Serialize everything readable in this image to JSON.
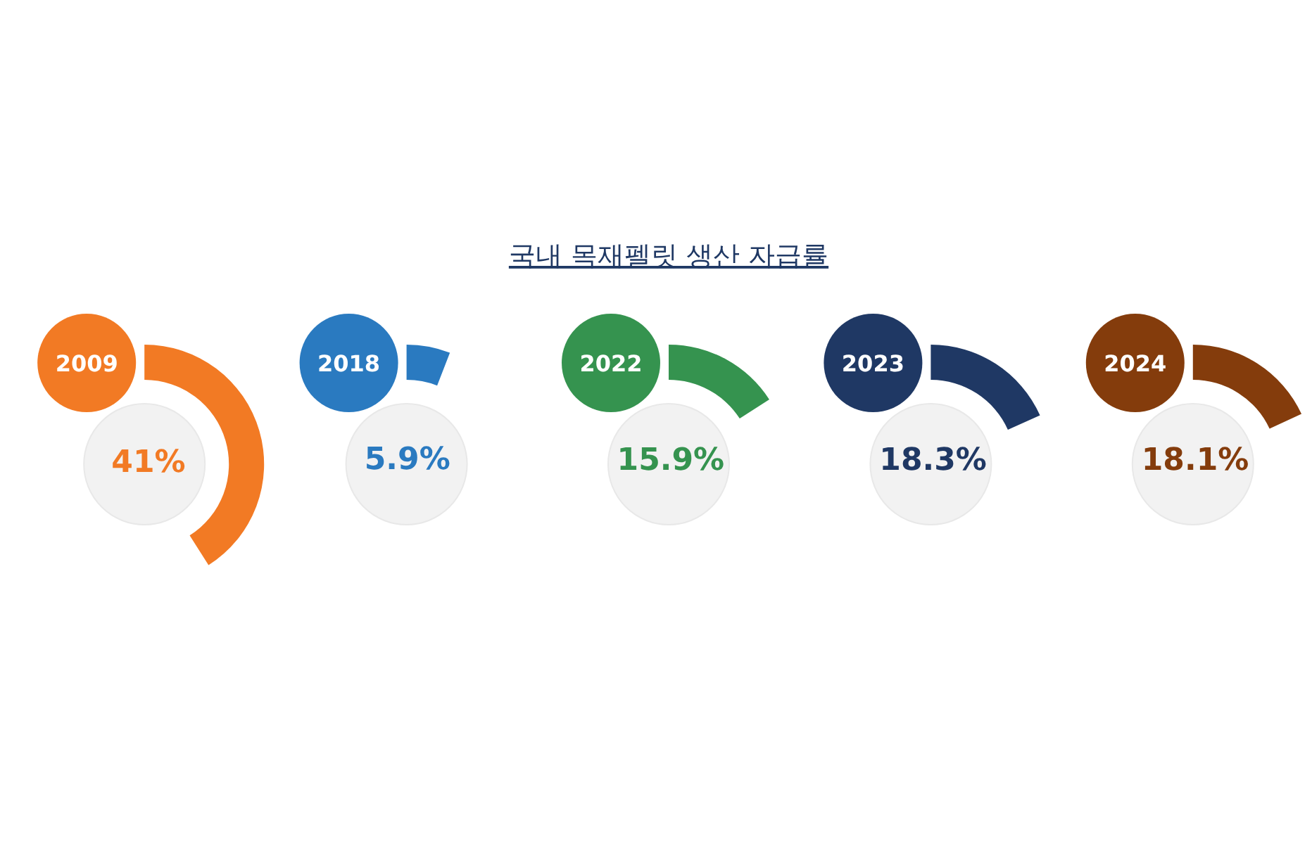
{
  "chart_data": [
    {
      "type": "other",
      "title": "국내 목재펠릿 생산 자급률"
    },
    {
      "type": "pie",
      "title": "2009",
      "categories": [
        null
      ],
      "values": [
        41
      ],
      "colors": [
        "#f27a24"
      ],
      "value_labels": [
        "41%"
      ]
    },
    {
      "type": "pie",
      "title": "2018",
      "categories": [
        null
      ],
      "values": [
        5.9
      ],
      "colors": [
        "#2a7ac0"
      ],
      "value_labels": [
        "5.9%"
      ]
    },
    {
      "type": "pie",
      "title": "2022",
      "categories": [
        null
      ],
      "values": [
        15.9
      ],
      "colors": [
        "#35934f"
      ],
      "value_labels": [
        "15.9%"
      ]
    },
    {
      "type": "pie",
      "title": "2023",
      "categories": [
        null
      ],
      "values": [
        18.3
      ],
      "colors": [
        "#1f3864"
      ],
      "value_labels": [
        "18.3%"
      ]
    },
    {
      "type": "pie",
      "title": "2024",
      "categories": [
        null
      ],
      "values": [
        18.1
      ],
      "colors": [
        "#843c0c"
      ],
      "value_labels": [
        "18.1%"
      ]
    }
  ]
}
